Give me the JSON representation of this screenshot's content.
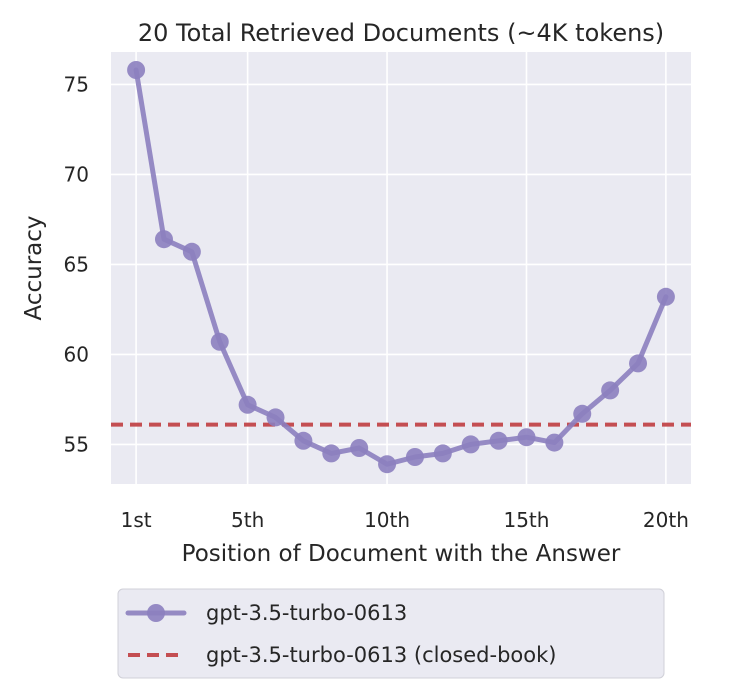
{
  "chart_data": {
    "type": "line",
    "title": "20 Total Retrieved Documents (~4K tokens)",
    "xlabel": "Position of Document with the Answer",
    "ylabel": "Accuracy",
    "x": [
      1,
      2,
      3,
      4,
      5,
      6,
      7,
      8,
      9,
      10,
      11,
      12,
      13,
      14,
      15,
      16,
      17,
      18,
      19,
      20
    ],
    "x_ticks": [
      1,
      5,
      10,
      15,
      20
    ],
    "x_tick_labels": [
      "1st",
      "5th",
      "10th",
      "15th",
      "20th"
    ],
    "y_ticks": [
      55,
      60,
      65,
      70,
      75
    ],
    "y_tick_labels": [
      "55",
      "60",
      "65",
      "70",
      "75"
    ],
    "xlim": [
      0.1,
      20.9
    ],
    "ylim": [
      52.8,
      76.8
    ],
    "grid": true,
    "legend_placement": "bottom",
    "series": [
      {
        "name": "gpt-3.5-turbo-0613",
        "style": "line-marker",
        "color": "#8c80bf",
        "values": [
          75.8,
          66.4,
          65.7,
          60.7,
          57.2,
          56.5,
          55.2,
          54.5,
          54.8,
          53.9,
          54.3,
          54.5,
          55.0,
          55.2,
          55.4,
          55.1,
          56.7,
          58.0,
          59.5,
          63.2
        ]
      },
      {
        "name": "gpt-3.5-turbo-0613 (closed-book)",
        "style": "dashed",
        "color": "#c44e52",
        "value": 56.1
      }
    ]
  },
  "colors": {
    "plot_background": "#eaeaf2",
    "grid": "#ffffff",
    "text": "#262626"
  }
}
